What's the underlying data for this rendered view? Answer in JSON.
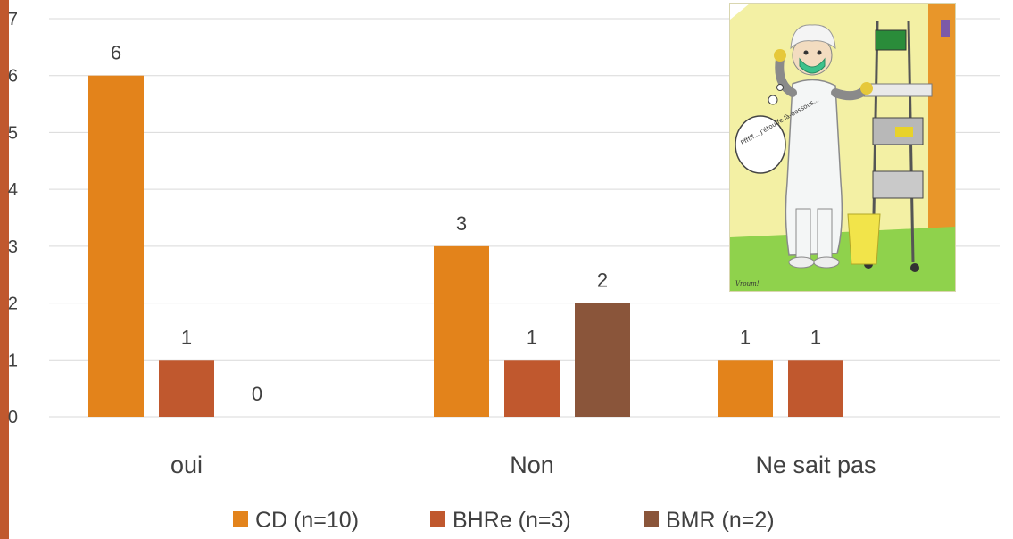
{
  "chart_data": {
    "type": "bar",
    "categories": [
      "oui",
      "Non",
      "Ne sait pas"
    ],
    "series": [
      {
        "name": "CD (n=10)",
        "values": [
          6,
          3,
          1
        ],
        "color": "#e3831b"
      },
      {
        "name": "BHRe (n=3)",
        "values": [
          1,
          1,
          1
        ],
        "color": "#c0582e"
      },
      {
        "name": "BMR (n=2)",
        "values": [
          0,
          2,
          null
        ],
        "color": "#8a553a"
      }
    ],
    "ylim": [
      0,
      7
    ],
    "yticks": [
      0,
      1,
      2,
      3,
      4,
      5,
      6,
      7
    ],
    "grid": true,
    "legend_position": "bottom"
  },
  "colors": {
    "left_bar": "#c0582e",
    "gridline": "#d9d9d9"
  },
  "illustration": {
    "thought_text": "Pfffff... J'étouffe là-dessous...",
    "signature": "Vroum!"
  }
}
